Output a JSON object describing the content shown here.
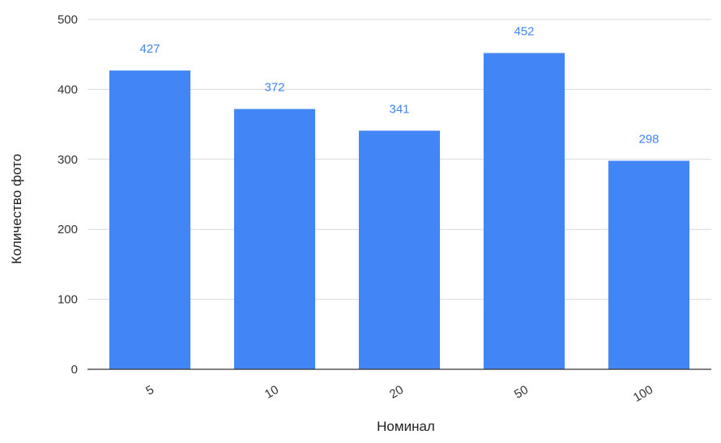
{
  "chart_data": {
    "type": "bar",
    "categories": [
      "5",
      "10",
      "20",
      "50",
      "100"
    ],
    "values": [
      427,
      372,
      341,
      452,
      298
    ],
    "data_labels": [
      "427",
      "372",
      "341",
      "452",
      "298"
    ],
    "xlabel": "Номинал",
    "ylabel": "Количество фото",
    "ylim": [
      0,
      500
    ],
    "yticks": [
      0,
      100,
      200,
      300,
      400,
      500
    ],
    "ytick_labels": [
      "0",
      "100",
      "200",
      "300",
      "400",
      "500"
    ],
    "grid": true,
    "legend": "none",
    "bar_color": "#4285f4",
    "label_color": "#4285f4",
    "x_tick_rotation": "diagonal"
  }
}
